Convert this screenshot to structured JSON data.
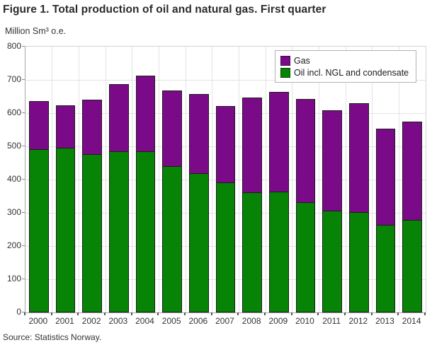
{
  "chart": {
    "title": "Figure 1. Total production of oil and natural gas. First quarter",
    "unit_label": "Million Sm³ o.e.",
    "source": "Source: Statistics Norway."
  },
  "chart_data": {
    "type": "bar",
    "stacked": true,
    "title": "Figure 1. Total production of oil and natural gas. First quarter",
    "ylabel": "Million Sm³ o.e.",
    "xlabel": "",
    "categories": [
      "2000",
      "2001",
      "2002",
      "2003",
      "2004",
      "2005",
      "2006",
      "2007",
      "2008",
      "2009",
      "2010",
      "2011",
      "2012",
      "2013",
      "2014"
    ],
    "series": [
      {
        "name": "Gas",
        "color": "#7b0a89",
        "values": [
          147,
          130,
          166,
          204,
          229,
          231,
          240,
          232,
          286,
          301,
          313,
          304,
          331,
          292,
          297
        ]
      },
      {
        "name": "Oil incl. NGL and condensate",
        "color": "#078306",
        "values": [
          490,
          493,
          474,
          484,
          484,
          438,
          417,
          389,
          360,
          362,
          330,
          304,
          299,
          261,
          277
        ]
      }
    ],
    "totals": [
      637,
      623,
      640,
      688,
      713,
      669,
      657,
      621,
      646,
      663,
      643,
      608,
      630,
      553,
      574
    ],
    "ylim": [
      0,
      800
    ],
    "ytick_step": 100,
    "grid": true,
    "legend_position": "top-right-inside",
    "legend": [
      "Gas",
      "Oil incl. NGL and condensate"
    ]
  },
  "colors": {
    "gas": "#7b0a89",
    "oil": "#078306",
    "gridline": "#e3e3e3",
    "axis": "#a6a6a6",
    "text": "#333333"
  }
}
